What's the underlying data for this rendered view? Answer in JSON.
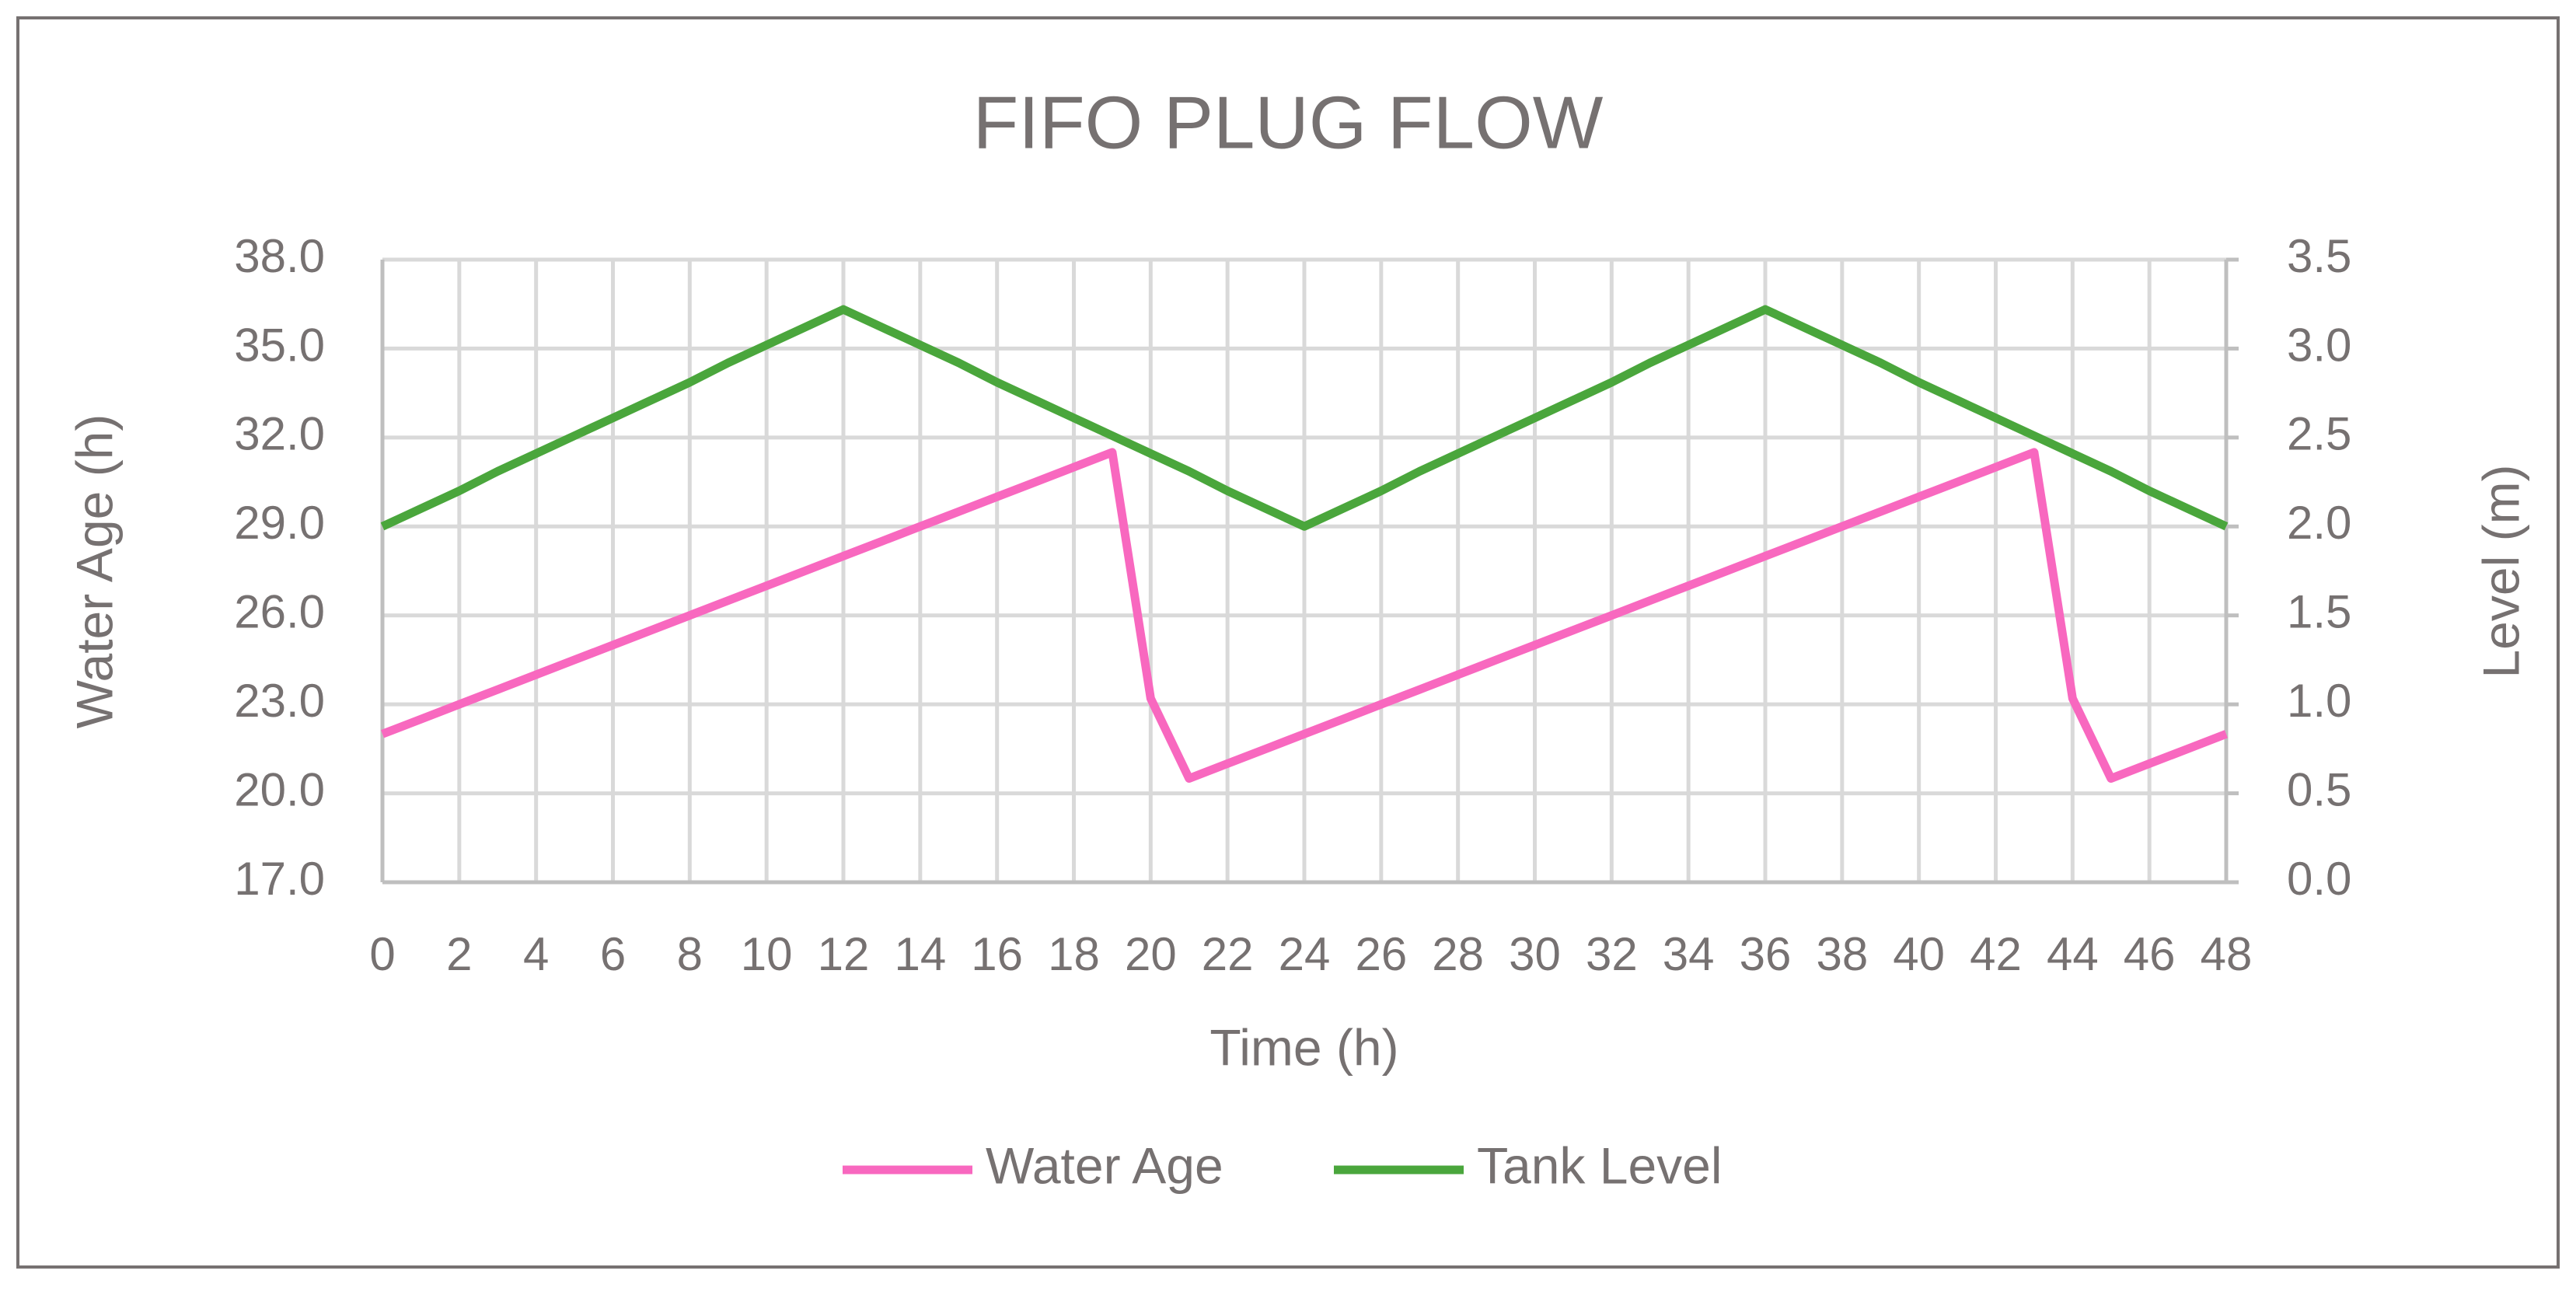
{
  "chart_data": {
    "type": "line",
    "title": "FIFO PLUG FLOW",
    "x_label": "Time (h)",
    "y_label": "Water Age (h)",
    "y2_label": "Level (m)",
    "x": [
      0,
      1,
      2,
      3,
      4,
      5,
      6,
      7,
      8,
      9,
      10,
      11,
      12,
      13,
      14,
      15,
      16,
      17,
      18,
      19,
      20,
      21,
      22,
      23,
      24,
      25,
      26,
      27,
      28,
      29,
      30,
      31,
      32,
      33,
      34,
      35,
      36,
      37,
      38,
      39,
      40,
      41,
      42,
      43,
      44,
      45,
      46,
      47,
      48
    ],
    "series": [
      {
        "name": "Water Age",
        "color": "#f868bf",
        "axis": "y",
        "values": [
          22,
          22.5,
          23,
          23.5,
          24,
          24.5,
          25,
          25.5,
          26,
          26.5,
          27,
          27.5,
          28,
          28.5,
          29,
          29.5,
          30,
          30.5,
          31,
          31.5,
          23.2,
          20.5,
          21,
          21.5,
          22,
          22.5,
          23,
          23.5,
          24,
          24.5,
          25,
          25.5,
          26,
          26.5,
          27,
          27.5,
          28,
          28.5,
          29,
          29.5,
          30,
          30.5,
          31,
          31.5,
          23.2,
          20.5,
          21,
          21.5,
          22
        ]
      },
      {
        "name": "Tank Level",
        "color": "#4aa63c",
        "axis": "y2",
        "values": [
          2.0,
          2.1,
          2.2,
          2.31,
          2.41,
          2.51,
          2.61,
          2.71,
          2.81,
          2.92,
          3.02,
          3.12,
          3.22,
          3.12,
          3.02,
          2.92,
          2.81,
          2.71,
          2.61,
          2.51,
          2.41,
          2.31,
          2.2,
          2.1,
          2.0,
          2.1,
          2.2,
          2.31,
          2.41,
          2.51,
          2.61,
          2.71,
          2.81,
          2.92,
          3.02,
          3.12,
          3.22,
          3.12,
          3.02,
          2.92,
          2.81,
          2.71,
          2.61,
          2.51,
          2.41,
          2.31,
          2.2,
          2.1,
          2.0
        ]
      }
    ],
    "xlim": [
      0,
      48
    ],
    "xticks": [
      0,
      2,
      4,
      6,
      8,
      10,
      12,
      14,
      16,
      18,
      20,
      22,
      24,
      26,
      28,
      30,
      32,
      34,
      36,
      38,
      40,
      42,
      44,
      46,
      48
    ],
    "ylim": [
      17,
      38
    ],
    "yticks": [
      {
        "value": 17,
        "label": "17.0"
      },
      {
        "value": 20,
        "label": "20.0"
      },
      {
        "value": 23,
        "label": "23.0"
      },
      {
        "value": 26,
        "label": "26.0"
      },
      {
        "value": 29,
        "label": "29.0"
      },
      {
        "value": 32,
        "label": "32.0"
      },
      {
        "value": 35,
        "label": "35.0"
      },
      {
        "value": 38,
        "label": "38.0"
      }
    ],
    "y2lim": [
      0,
      3.5
    ],
    "y2ticks": [
      {
        "value": 0,
        "label": "0.0"
      },
      0.5,
      {
        "value": 1,
        "label": "1.0"
      },
      1.5,
      {
        "value": 2,
        "label": "2.0"
      },
      2.5,
      {
        "value": 3,
        "label": "3.0"
      },
      3.5
    ],
    "grid": true,
    "legend": "bottom"
  }
}
